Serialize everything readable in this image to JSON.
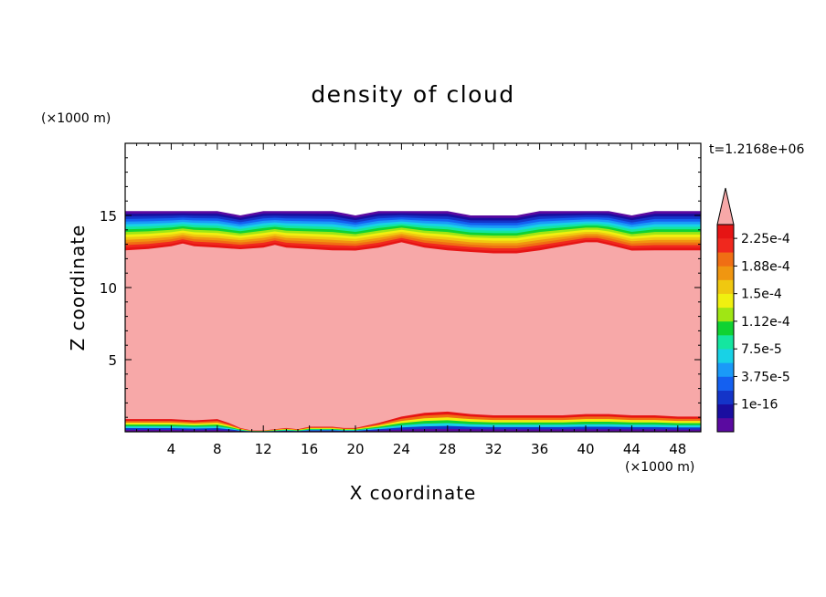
{
  "chart_data": {
    "type": "heatmap",
    "title": "density of cloud",
    "xlabel": "X coordinate",
    "ylabel": "Z coordinate",
    "x_unit": "(×1000 m)",
    "y_unit": "(×1000 m)",
    "time_label": "t=1.2168e+06",
    "xlim": [
      0,
      50
    ],
    "ylim": [
      0,
      20
    ],
    "x_ticks": [
      "4",
      "8",
      "12",
      "16",
      "20",
      "24",
      "28",
      "32",
      "36",
      "40",
      "44",
      "48"
    ],
    "y_ticks": [
      "5",
      "10",
      "15"
    ],
    "colorbar": {
      "labels": [
        "2.25e-4",
        "1.88e-4",
        "1.5e-4",
        "1.12e-4",
        "7.5e-5",
        "3.75e-5",
        "1e-16"
      ],
      "colors": [
        "#5a0aa0",
        "#1a0ea0",
        "#1434c8",
        "#1460f0",
        "#1a9af8",
        "#18d2e6",
        "#14e6a0",
        "#10d232",
        "#a0e614",
        "#f0f010",
        "#f0c810",
        "#f09610",
        "#f06e14",
        "#f0281e",
        "#e61414"
      ],
      "overflow_color": "#f7a8a8"
    },
    "upper_layer": {
      "x": [
        0,
        2,
        4,
        5,
        6,
        8,
        10,
        12,
        13,
        14,
        16,
        18,
        20,
        22,
        24,
        26,
        28,
        30,
        32,
        34,
        36,
        38,
        40,
        41,
        42,
        44,
        46,
        48,
        50
      ],
      "top": [
        15.3,
        15.3,
        15.3,
        15.3,
        15.3,
        15.3,
        15.0,
        15.3,
        15.3,
        15.3,
        15.3,
        15.3,
        15.0,
        15.3,
        15.3,
        15.3,
        15.3,
        15.0,
        15.0,
        15.0,
        15.3,
        15.3,
        15.3,
        15.3,
        15.3,
        15.0,
        15.3,
        15.3,
        15.3
      ],
      "pink_top": [
        12.4,
        12.5,
        12.7,
        12.9,
        12.7,
        12.6,
        12.5,
        12.6,
        12.8,
        12.6,
        12.5,
        12.4,
        12.4,
        12.6,
        13.0,
        12.6,
        12.4,
        12.3,
        12.2,
        12.2,
        12.4,
        12.7,
        13.0,
        13.0,
        12.8,
        12.4,
        12.4,
        12.4,
        12.4
      ]
    },
    "lower_layer": {
      "x": [
        0,
        2,
        4,
        6,
        8,
        9,
        10,
        11,
        12,
        13,
        14,
        15,
        16,
        18,
        19,
        20,
        22,
        24,
        26,
        28,
        30,
        32,
        34,
        36,
        38,
        40,
        42,
        44,
        46,
        48,
        50
      ],
      "pink_bottom": [
        1.0,
        1.0,
        1.0,
        0.9,
        1.0,
        0.7,
        0.3,
        0.1,
        0.1,
        0.2,
        0.3,
        0.2,
        0.4,
        0.4,
        0.3,
        0.3,
        0.7,
        1.2,
        1.5,
        1.6,
        1.4,
        1.3,
        1.3,
        1.3,
        1.3,
        1.4,
        1.4,
        1.3,
        1.3,
        1.2,
        1.2
      ]
    }
  }
}
